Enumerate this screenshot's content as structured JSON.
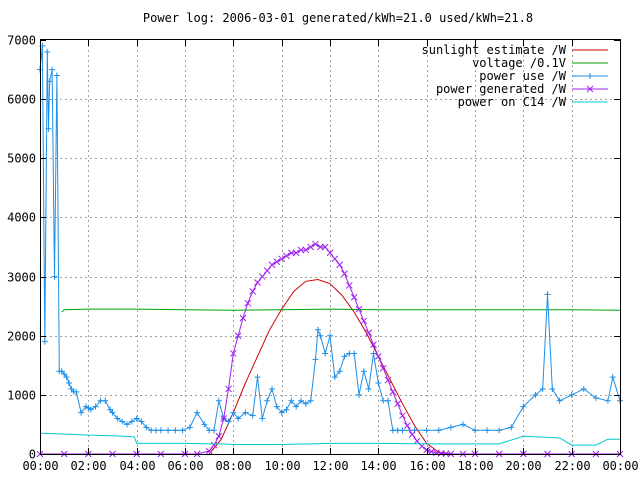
{
  "chart_data": {
    "type": "line",
    "title": "Power log: 2006-03-01 generated/kWh=21.0 used/kWh=21.8",
    "xlabel": "",
    "ylabel": "",
    "xlim": [
      0,
      24
    ],
    "ylim": [
      0,
      7000
    ],
    "x_tick_labels": [
      "00:00",
      "02:00",
      "04:00",
      "06:00",
      "08:00",
      "10:00",
      "12:00",
      "14:00",
      "16:00",
      "18:00",
      "20:00",
      "22:00",
      "00:00"
    ],
    "y_ticks": [
      0,
      1000,
      2000,
      3000,
      4000,
      5000,
      6000,
      7000
    ],
    "grid": true,
    "legend_position": "top-right",
    "series": [
      {
        "name": "sunlight estimate /W",
        "color": "#cc0000",
        "marker": "none",
        "x": [
          7.0,
          7.5,
          8.0,
          8.5,
          9.0,
          9.5,
          10.0,
          10.5,
          11.0,
          11.5,
          12.0,
          12.5,
          13.0,
          13.5,
          14.0,
          14.5,
          15.0,
          15.5,
          16.0,
          16.5,
          17.0
        ],
        "y": [
          0,
          250,
          700,
          1200,
          1650,
          2100,
          2450,
          2750,
          2920,
          2950,
          2880,
          2680,
          2400,
          2050,
          1650,
          1250,
          850,
          480,
          180,
          30,
          0
        ]
      },
      {
        "name": "voltage /0.1V",
        "color": "#00a000",
        "marker": "none",
        "x": [
          0.9,
          1.0,
          2.0,
          4.0,
          6.0,
          8.0,
          10.0,
          12.0,
          14.0,
          16.0,
          18.0,
          20.0,
          22.0,
          24.0
        ],
        "y": [
          2400,
          2440,
          2450,
          2450,
          2440,
          2430,
          2440,
          2450,
          2440,
          2440,
          2440,
          2440,
          2440,
          2430
        ]
      },
      {
        "name": "power use /W",
        "color": "#1e8fe8",
        "marker": "plus",
        "x": [
          0.0,
          0.1,
          0.2,
          0.3,
          0.35,
          0.4,
          0.5,
          0.6,
          0.7,
          0.8,
          0.9,
          1.0,
          1.1,
          1.2,
          1.3,
          1.4,
          1.5,
          1.7,
          1.9,
          2.0,
          2.1,
          2.3,
          2.5,
          2.7,
          2.9,
          3.0,
          3.2,
          3.4,
          3.6,
          3.8,
          4.0,
          4.2,
          4.4,
          4.6,
          4.8,
          5.0,
          5.3,
          5.6,
          5.9,
          6.2,
          6.5,
          6.8,
          7.0,
          7.2,
          7.4,
          7.6,
          7.8,
          8.0,
          8.2,
          8.5,
          8.8,
          9.0,
          9.2,
          9.4,
          9.6,
          9.8,
          10.0,
          10.2,
          10.4,
          10.6,
          10.8,
          11.0,
          11.2,
          11.4,
          11.5,
          11.6,
          11.8,
          12.0,
          12.2,
          12.4,
          12.6,
          12.8,
          13.0,
          13.2,
          13.4,
          13.6,
          13.8,
          14.0,
          14.2,
          14.4,
          14.6,
          14.8,
          15.0,
          15.5,
          16.0,
          16.5,
          17.0,
          17.5,
          18.0,
          18.5,
          19.0,
          19.5,
          20.0,
          20.5,
          20.8,
          21.0,
          21.2,
          21.5,
          22.0,
          22.5,
          23.0,
          23.5,
          23.7,
          24.0
        ],
        "y": [
          6500,
          6900,
          1900,
          6800,
          5500,
          6300,
          6500,
          3000,
          6400,
          1400,
          1400,
          1350,
          1300,
          1200,
          1100,
          1050,
          1050,
          700,
          800,
          780,
          750,
          800,
          900,
          900,
          750,
          700,
          600,
          550,
          500,
          550,
          600,
          550,
          450,
          400,
          400,
          400,
          400,
          400,
          400,
          450,
          700,
          500,
          400,
          400,
          900,
          600,
          550,
          700,
          600,
          700,
          650,
          1300,
          600,
          900,
          1100,
          800,
          700,
          750,
          900,
          800,
          900,
          850,
          900,
          1600,
          2100,
          2000,
          1700,
          2000,
          1300,
          1400,
          1650,
          1700,
          1700,
          1000,
          1400,
          1100,
          1700,
          1200,
          900,
          900,
          400,
          400,
          400,
          400,
          400,
          400,
          450,
          500,
          400,
          400,
          400,
          450,
          800,
          1000,
          1100,
          2700,
          1100,
          900,
          1000,
          1100,
          950,
          900,
          1300,
          900
        ]
      },
      {
        "name": "power generated /W",
        "color": "#a020f0",
        "marker": "cross",
        "x": [
          0.0,
          1.0,
          2.0,
          3.0,
          4.0,
          5.0,
          6.0,
          6.5,
          7.0,
          7.2,
          7.4,
          7.6,
          7.8,
          8.0,
          8.2,
          8.4,
          8.6,
          8.8,
          9.0,
          9.2,
          9.4,
          9.6,
          9.8,
          10.0,
          10.2,
          10.4,
          10.6,
          10.8,
          11.0,
          11.2,
          11.4,
          11.6,
          11.8,
          12.0,
          12.2,
          12.4,
          12.6,
          12.8,
          13.0,
          13.2,
          13.4,
          13.6,
          13.8,
          14.0,
          14.2,
          14.4,
          14.6,
          14.8,
          15.0,
          15.2,
          15.4,
          15.6,
          15.8,
          16.0,
          16.2,
          16.4,
          16.6,
          16.8,
          17.0,
          17.5,
          18.0,
          19.0,
          20.0,
          21.0,
          22.0,
          23.0,
          24.0
        ],
        "y": [
          0,
          0,
          0,
          0,
          0,
          0,
          0,
          0,
          50,
          150,
          300,
          600,
          1100,
          1700,
          2000,
          2300,
          2550,
          2750,
          2900,
          3000,
          3100,
          3200,
          3250,
          3300,
          3350,
          3400,
          3400,
          3450,
          3450,
          3500,
          3550,
          3500,
          3500,
          3400,
          3300,
          3200,
          3050,
          2850,
          2650,
          2450,
          2250,
          2050,
          1850,
          1650,
          1450,
          1250,
          1050,
          850,
          650,
          480,
          330,
          220,
          130,
          70,
          40,
          20,
          10,
          5,
          0,
          0,
          0,
          0,
          0,
          0,
          0,
          0,
          0
        ]
      },
      {
        "name": "power on C14 /W",
        "color": "#00cccc",
        "marker": "none",
        "x": [
          0.0,
          1.5,
          2.0,
          3.0,
          3.5,
          3.9,
          4.0,
          5.5,
          6.0,
          7.0,
          7.5,
          8.0,
          10.0,
          12.0,
          14.0,
          16.0,
          18.0,
          19.0,
          20.0,
          21.0,
          21.5,
          22.0,
          23.0,
          23.5,
          24.0
        ],
        "y": [
          350,
          330,
          320,
          310,
          300,
          290,
          180,
          180,
          180,
          170,
          170,
          160,
          160,
          180,
          180,
          170,
          170,
          170,
          300,
          280,
          270,
          150,
          150,
          250,
          250
        ]
      }
    ]
  }
}
